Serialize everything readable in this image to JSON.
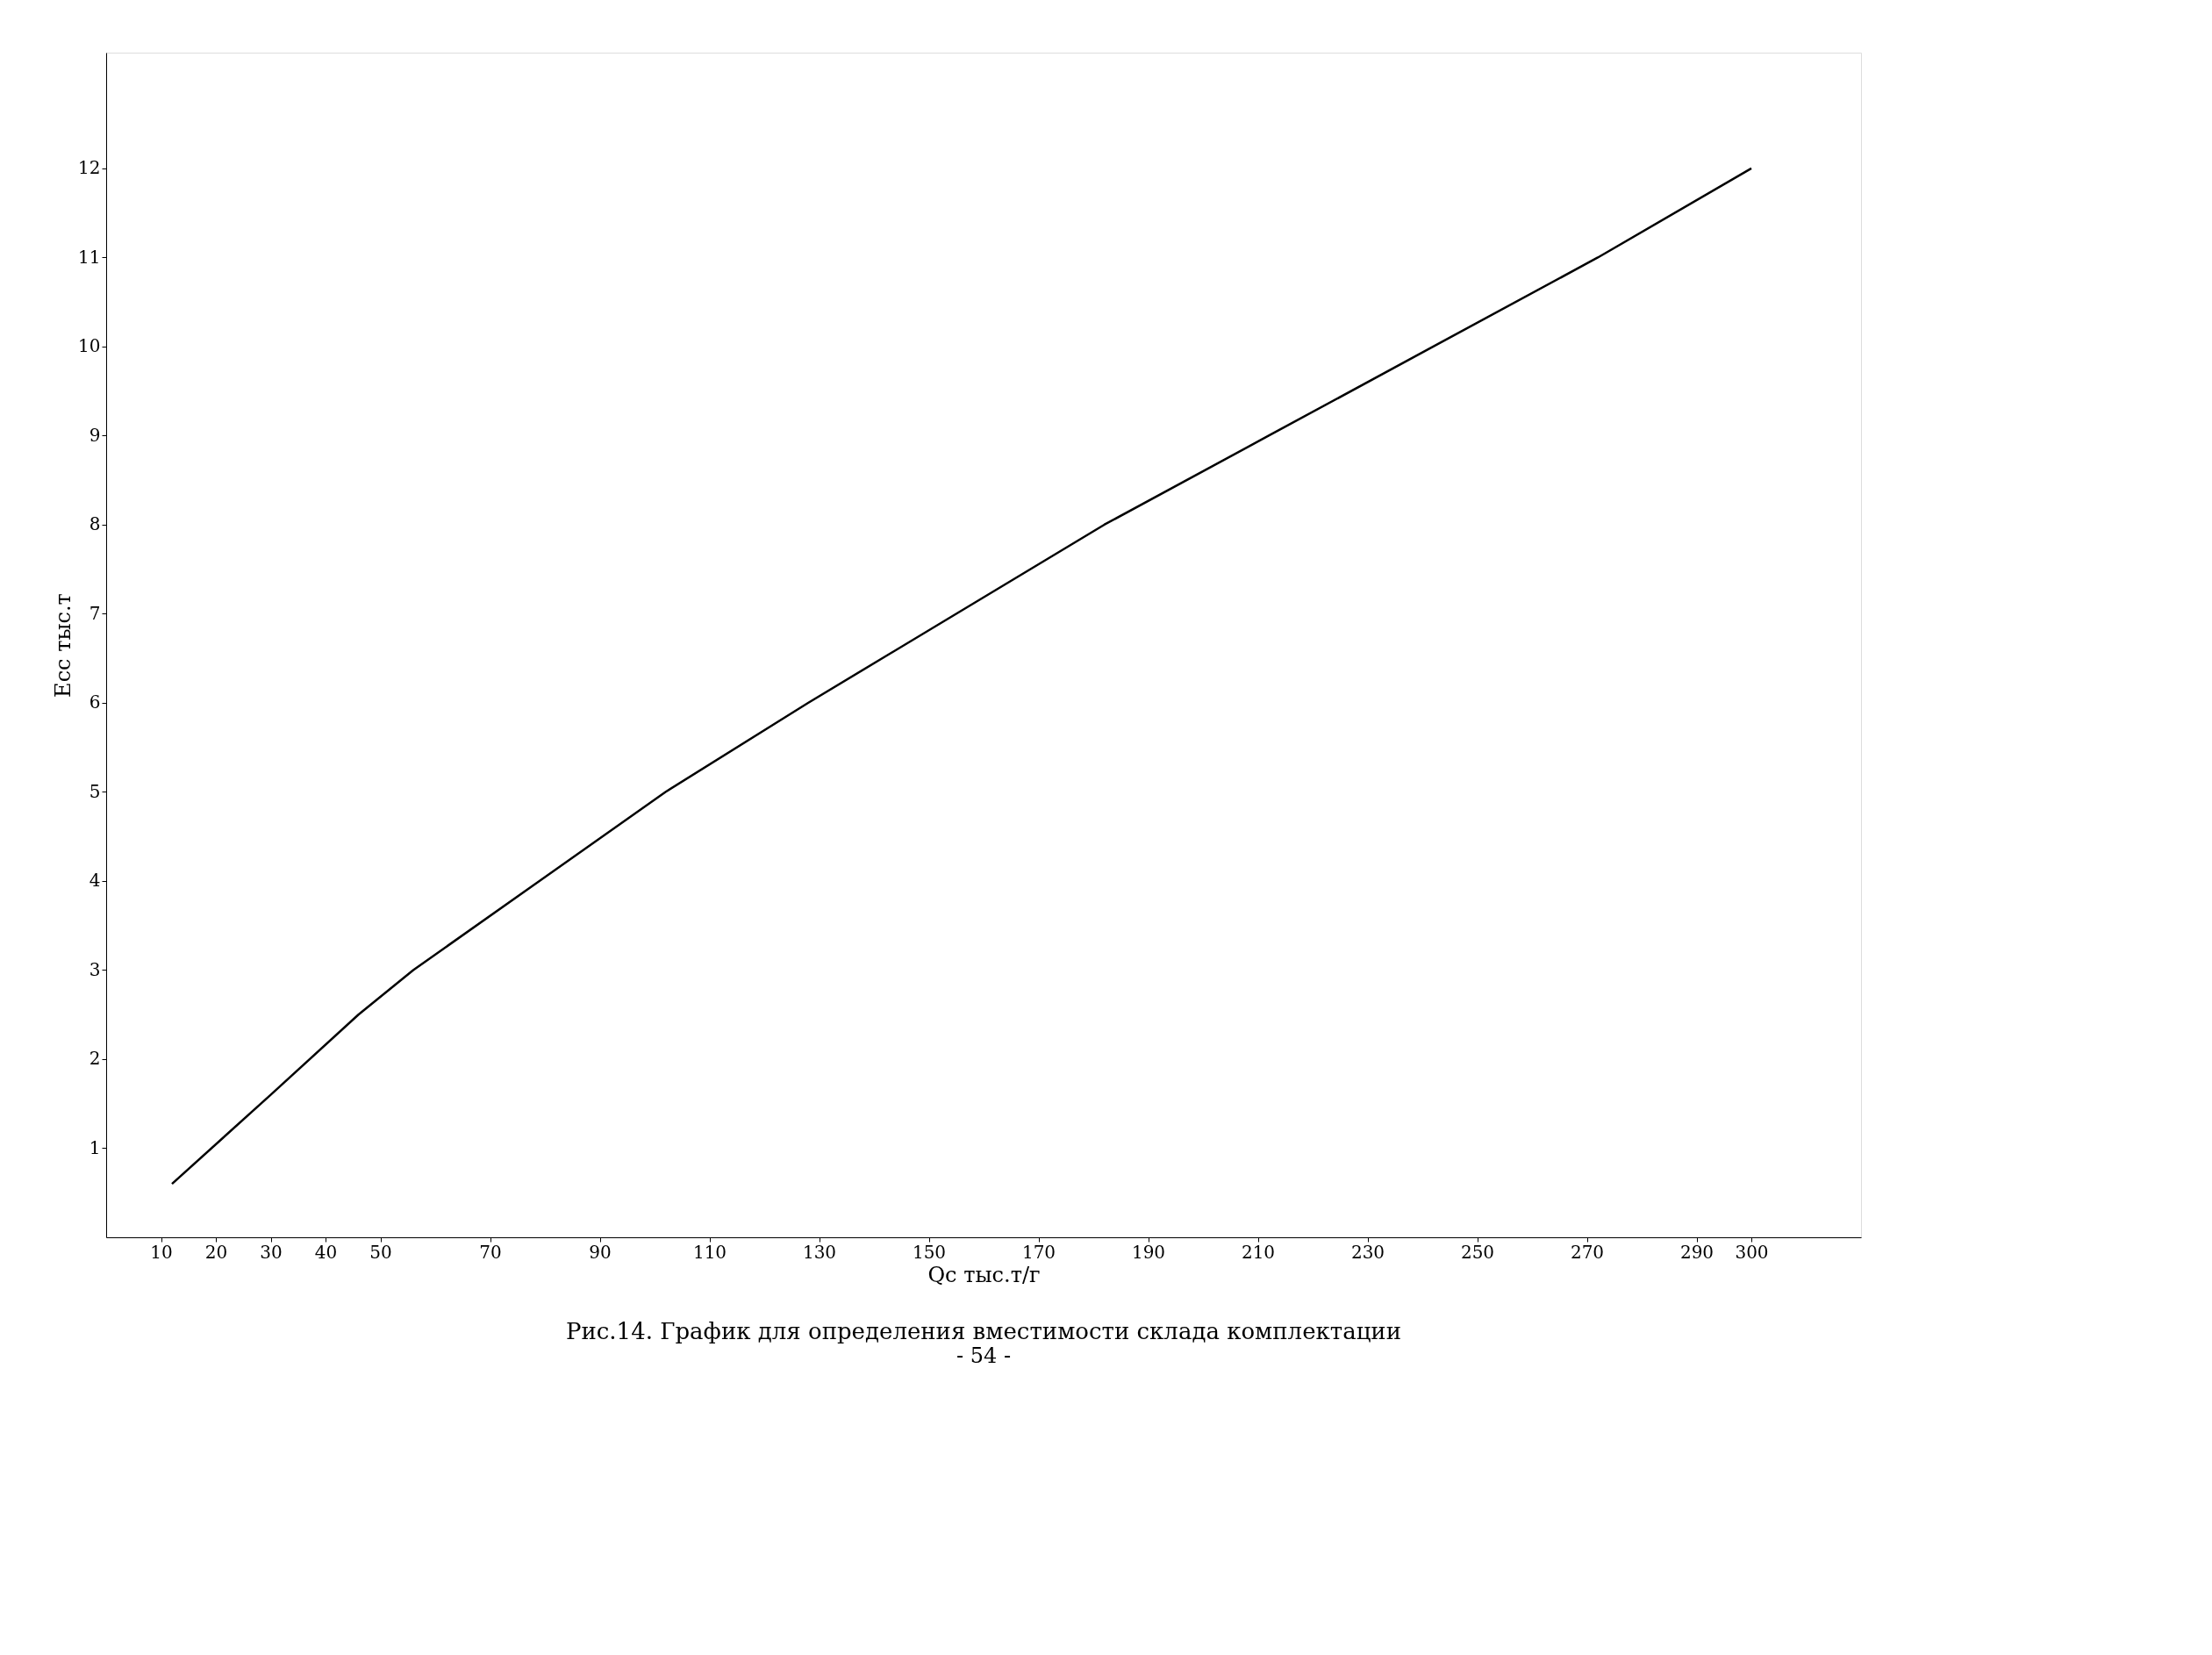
{
  "chart_data": {
    "type": "line",
    "xlabel": "Qc тыс.т/г",
    "ylabel": "Ecc тыс.т",
    "annotations": [
      "Рис.14. График для определения вместимости склада комплектации",
      "- 54 -"
    ],
    "x": [
      12,
      30,
      46,
      56,
      79,
      102,
      128,
      155,
      182,
      212,
      242,
      272,
      300
    ],
    "series": [
      {
        "color": "#000000",
        "values": [
          0.6,
          1.6,
          2.5,
          3,
          4,
          5,
          6,
          7,
          8,
          9,
          10,
          11,
          12
        ]
      }
    ],
    "xlim": [
      0,
      320
    ],
    "ylim": [
      0,
      13.3
    ],
    "xticks": [
      10,
      20,
      30,
      40,
      50,
      70,
      90,
      110,
      130,
      150,
      170,
      190,
      210,
      230,
      250,
      270,
      290,
      300
    ],
    "yticks": [
      1,
      2,
      3,
      4,
      5,
      6,
      7,
      8,
      9,
      10,
      11,
      12
    ],
    "grid": false,
    "legend": false,
    "marker": "none",
    "line_style": "solid"
  }
}
